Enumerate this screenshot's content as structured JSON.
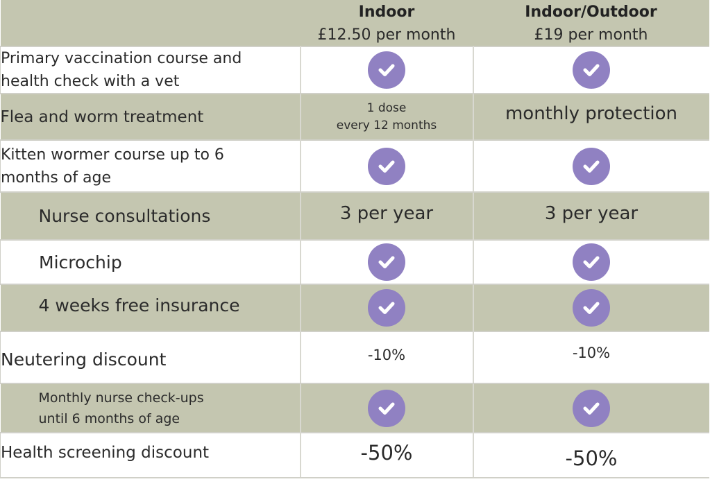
{
  "plans": [
    {
      "name": "Indoor",
      "price": "£12.50 per month"
    },
    {
      "name": "Indoor/Outdoor",
      "price": "£19 per month"
    }
  ],
  "rows": [
    {
      "feature": "Primary vaccination course and health check with a vet",
      "indoor": "check",
      "outdoor": "check"
    },
    {
      "feature": "Flea and worm treatment",
      "indoor_line1": "1 dose",
      "indoor_line2": "every 12 months",
      "outdoor": "monthly protection"
    },
    {
      "feature": "Kitten wormer course up to 6 months of age",
      "indoor": "check",
      "outdoor": "check"
    },
    {
      "feature": "Nurse consultations",
      "indoor": "3 per year",
      "outdoor": "3 per year"
    },
    {
      "feature": "Microchip",
      "indoor": "check",
      "outdoor": "check"
    },
    {
      "feature": "4 weeks free insurance",
      "indoor": "check",
      "outdoor": "check"
    },
    {
      "feature": "Neutering discount",
      "indoor": "-10%",
      "outdoor": "-10%"
    },
    {
      "feature": "Monthly nurse check-ups until 6 months of age",
      "indoor": "check",
      "outdoor": "check"
    },
    {
      "feature": "Health screening discount",
      "indoor": "-50%",
      "outdoor": "-50%"
    }
  ],
  "icons": {
    "included": "check-icon"
  },
  "colors": {
    "header_bg": "#c4c6b0",
    "check_bg": "#9081c2"
  }
}
